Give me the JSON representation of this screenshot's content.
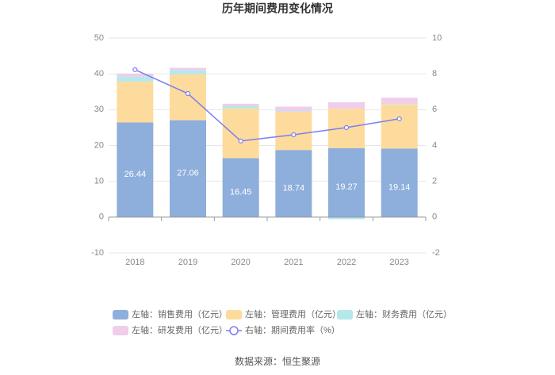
{
  "chart_data": {
    "type": "stacked_bar_line",
    "title": "历年期间费用变化情况",
    "source": "数据来源：恒生聚源",
    "categories": [
      "2018",
      "2019",
      "2020",
      "2021",
      "2022",
      "2023"
    ],
    "ylim": [
      -10,
      50
    ],
    "yticks": [
      -10,
      0,
      10,
      20,
      30,
      40,
      50
    ],
    "y2lim": [
      -2,
      10
    ],
    "y2ticks": [
      -2,
      0,
      2,
      4,
      6,
      8,
      10
    ],
    "grid": true,
    "series": [
      {
        "name": "左轴：销售费用（亿元）",
        "color": "#8eaedb",
        "values": [
          26.44,
          27.06,
          16.45,
          18.74,
          19.27,
          19.14
        ]
      },
      {
        "name": "左轴：管理费用（亿元）",
        "color": "#fddb9c",
        "values": [
          11.4,
          12.8,
          13.9,
          10.7,
          11.0,
          12.3
        ]
      },
      {
        "name": "左轴：财务费用（亿元）",
        "color": "#b4e8ec",
        "values": [
          1.4,
          1.1,
          0.7,
          0.2,
          -0.6,
          0.1
        ]
      },
      {
        "name": "左轴：研发费用（亿元）",
        "color": "#f0cdea",
        "values": [
          0.8,
          0.7,
          0.6,
          1.2,
          1.8,
          1.8
        ]
      },
      {
        "name": "右轴：期间费用率（%）",
        "color": "#7b7ff0",
        "axis": "y2",
        "values": [
          8.23,
          6.9,
          4.25,
          4.6,
          5.0,
          5.49
        ]
      }
    ]
  }
}
